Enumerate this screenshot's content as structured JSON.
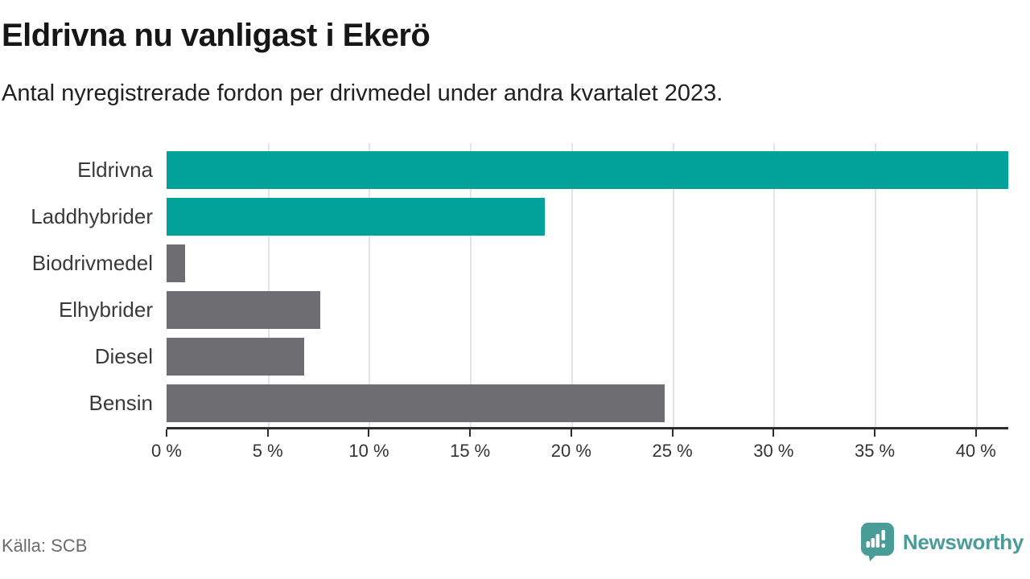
{
  "chart_data": {
    "type": "bar",
    "orientation": "horizontal",
    "title": "Eldrivna nu vanligast i Ekerö",
    "subtitle": "Antal nyregistrerade fordon per drivmedel under andra kvartalet 2023.",
    "categories": [
      "Eldrivna",
      "Laddhybrider",
      "Biodrivmedel",
      "Elhybrider",
      "Diesel",
      "Bensin"
    ],
    "values": [
      41.6,
      18.7,
      0.9,
      7.6,
      6.8,
      24.6
    ],
    "unit": "%",
    "colors": [
      "#00a29a",
      "#00a29a",
      "#6e6e72",
      "#6e6e72",
      "#6e6e72",
      "#6e6e72"
    ],
    "x_ticks": [
      0,
      5,
      10,
      15,
      20,
      25,
      30,
      35,
      40
    ],
    "x_tick_labels": [
      "0 %",
      "5 %",
      "10 %",
      "15 %",
      "20 %",
      "25 %",
      "30 %",
      "35 %",
      "40 %"
    ],
    "xlim": [
      0,
      41.6
    ],
    "grid": "vertical",
    "legend": "none"
  },
  "colors": {
    "highlight": "#00a29a",
    "default_bar": "#6e6e72",
    "axis": "#2d2d2d",
    "gridline": "#e4e4e4",
    "brand": "#4a9c98"
  },
  "footer": {
    "source": "Källa: SCB",
    "brand": "Newsworthy",
    "brand_icon": "speech-bubble-bar-chart-exclamation"
  }
}
